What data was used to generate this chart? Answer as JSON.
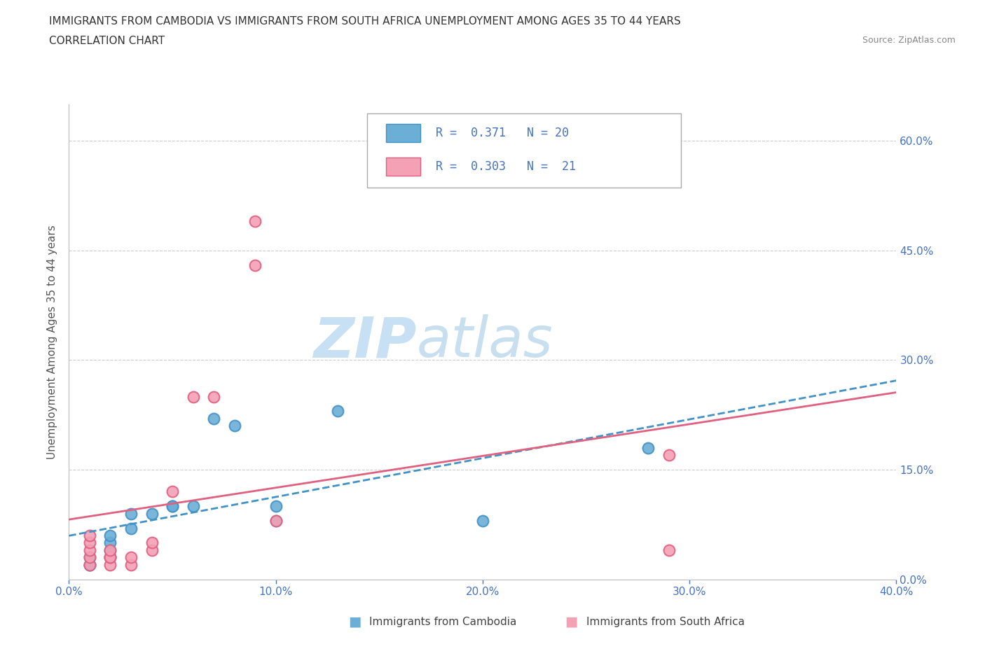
{
  "title_line1": "IMMIGRANTS FROM CAMBODIA VS IMMIGRANTS FROM SOUTH AFRICA UNEMPLOYMENT AMONG AGES 35 TO 44 YEARS",
  "title_line2": "CORRELATION CHART",
  "source_text": "Source: ZipAtlas.com",
  "ylabel": "Unemployment Among Ages 35 to 44 years",
  "xlim": [
    0.0,
    0.4
  ],
  "ylim": [
    0.0,
    0.65
  ],
  "xtick_vals": [
    0.0,
    0.1,
    0.2,
    0.3,
    0.4
  ],
  "xtick_labels": [
    "0.0%",
    "10.0%",
    "20.0%",
    "30.0%",
    "40.0%"
  ],
  "ytick_vals": [
    0.0,
    0.15,
    0.3,
    0.45,
    0.6
  ],
  "ytick_labels": [
    "0.0%",
    "15.0%",
    "30.0%",
    "45.0%",
    "60.0%"
  ],
  "cambodia_color": "#6baed6",
  "cambodia_edge": "#4292c6",
  "south_africa_color": "#f4a0b5",
  "south_africa_edge": "#e06080",
  "cambodia_R": "0.371",
  "cambodia_N": "20",
  "south_africa_R": "0.303",
  "south_africa_N": "21",
  "watermark_zip": "ZIP",
  "watermark_atlas": "atlas",
  "watermark_color_zip": "#c8e0f4",
  "watermark_color_atlas": "#c8dff0",
  "grid_color": "#cccccc",
  "axis_label_color": "#4472c4",
  "legend_label_cambodia": "Immigrants from Cambodia",
  "legend_label_sa": "Immigrants from South Africa",
  "cambodia_x": [
    0.01,
    0.01,
    0.01,
    0.02,
    0.02,
    0.02,
    0.02,
    0.03,
    0.03,
    0.04,
    0.05,
    0.05,
    0.06,
    0.07,
    0.08,
    0.1,
    0.1,
    0.13,
    0.2,
    0.28
  ],
  "cambodia_y": [
    0.02,
    0.02,
    0.03,
    0.03,
    0.04,
    0.05,
    0.06,
    0.07,
    0.09,
    0.09,
    0.1,
    0.1,
    0.1,
    0.22,
    0.21,
    0.08,
    0.1,
    0.23,
    0.08,
    0.18
  ],
  "south_africa_x": [
    0.01,
    0.01,
    0.01,
    0.01,
    0.01,
    0.02,
    0.02,
    0.02,
    0.02,
    0.03,
    0.03,
    0.04,
    0.04,
    0.05,
    0.06,
    0.07,
    0.09,
    0.09,
    0.1,
    0.29,
    0.29
  ],
  "south_africa_y": [
    0.02,
    0.03,
    0.04,
    0.05,
    0.06,
    0.02,
    0.03,
    0.03,
    0.04,
    0.02,
    0.03,
    0.04,
    0.05,
    0.12,
    0.25,
    0.25,
    0.43,
    0.49,
    0.08,
    0.17,
    0.04
  ]
}
